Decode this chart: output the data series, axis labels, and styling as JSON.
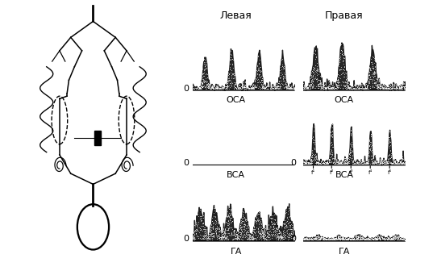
{
  "left_label": "Левая",
  "right_label": "Правая",
  "panel_labels": [
    [
      "ОСА",
      "ОСА"
    ],
    [
      "ВСА",
      "ВСА"
    ],
    [
      "ГА",
      "ГА"
    ]
  ],
  "zero": "0"
}
